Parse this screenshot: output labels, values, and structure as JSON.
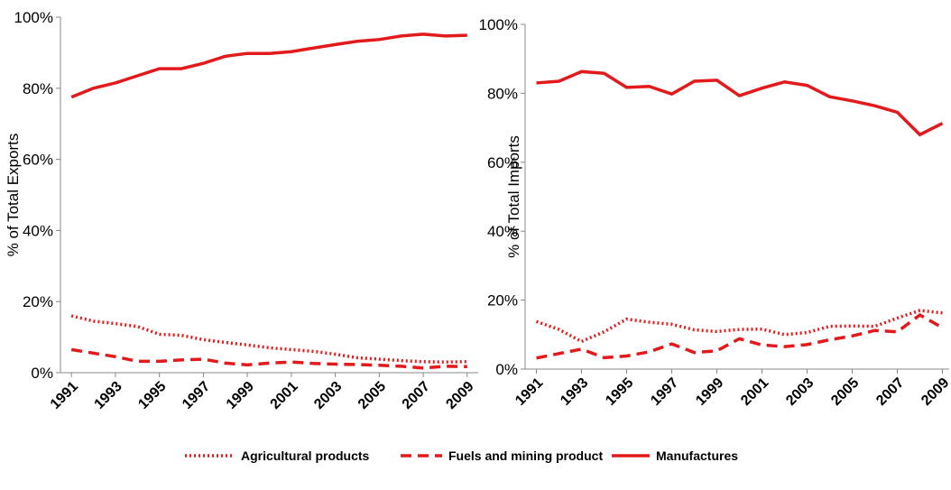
{
  "chart_data": [
    {
      "type": "line",
      "ylabel": "% of Total Exports",
      "x": [
        1991,
        1992,
        1993,
        1994,
        1995,
        1996,
        1997,
        1998,
        1999,
        2000,
        2001,
        2002,
        2003,
        2004,
        2005,
        2006,
        2007,
        2008,
        2009
      ],
      "xlim": [
        1990.5,
        2009.5
      ],
      "xticks": [
        1991,
        1993,
        1995,
        1997,
        1999,
        2001,
        2003,
        2005,
        2007,
        2009
      ],
      "ylim": [
        0,
        100
      ],
      "yticks": [
        {
          "value": 0,
          "label": "0%"
        },
        {
          "value": 20,
          "label": "20%"
        },
        {
          "value": 40,
          "label": "40%"
        },
        {
          "value": 60,
          "label": "60%"
        },
        {
          "value": 80,
          "label": "80%"
        },
        {
          "value": 100,
          "label": "100%"
        }
      ],
      "series": [
        {
          "name": "Agricultural products",
          "color": "#e31a1c",
          "dash": "dotted",
          "values": [
            16,
            14.5,
            13.8,
            13,
            10.8,
            10.5,
            9.3,
            8.5,
            7.8,
            7,
            6.5,
            6,
            5.2,
            4.2,
            3.8,
            3.4,
            3.1,
            3,
            3.1
          ]
        },
        {
          "name": "Fuels and mining product",
          "color": "#e31a1c",
          "dash": "dashed",
          "values": [
            6.5,
            5.5,
            4.5,
            3.2,
            3.2,
            3.6,
            3.8,
            2.7,
            2.2,
            2.7,
            3,
            2.6,
            2.4,
            2.3,
            2.1,
            1.8,
            1.3,
            1.8,
            1.7
          ]
        },
        {
          "name": "Manufactures",
          "color": "#e31a1c",
          "dash": "solid",
          "values": [
            77.5,
            80,
            81.5,
            83.5,
            85.5,
            85.5,
            87,
            89,
            89.8,
            89.8,
            90.3,
            91.3,
            92.3,
            93.2,
            93.7,
            94.7,
            95.2,
            94.7,
            94.9
          ]
        }
      ]
    },
    {
      "type": "line",
      "ylabel": "% of Total Imports",
      "x": [
        1991,
        1992,
        1993,
        1994,
        1995,
        1996,
        1997,
        1998,
        1999,
        2000,
        2001,
        2002,
        2003,
        2004,
        2005,
        2006,
        2007,
        2008,
        2009
      ],
      "xlim": [
        1990.5,
        2009.3
      ],
      "xticks": [
        1991,
        1993,
        1995,
        1997,
        1999,
        2001,
        2003,
        2005,
        2007,
        2009
      ],
      "ylim": [
        0,
        100
      ],
      "yticks": [
        {
          "value": 0,
          "label": "0%"
        },
        {
          "value": 20,
          "label": "20%"
        },
        {
          "value": 40,
          "label": "40%"
        },
        {
          "value": 60,
          "label": "60%"
        },
        {
          "value": 80,
          "label": "80%"
        },
        {
          "value": 100,
          "label": "100%"
        }
      ],
      "series": [
        {
          "name": "Agricultural products",
          "color": "#e31a1c",
          "dash": "dotted",
          "values": [
            13.8,
            11.5,
            8,
            10.8,
            14.5,
            13.6,
            13,
            11.4,
            10.9,
            11.5,
            11.6,
            10,
            10.6,
            12.4,
            12.5,
            12.4,
            14.8,
            17,
            16.3
          ]
        },
        {
          "name": "Fuels and mining product",
          "color": "#e31a1c",
          "dash": "dashed",
          "values": [
            3.2,
            4.5,
            5.8,
            3.3,
            3.8,
            5,
            7.3,
            4.8,
            5.3,
            8.8,
            7,
            6.5,
            7.1,
            8.5,
            9.6,
            11.2,
            10.8,
            15.7,
            12
          ]
        },
        {
          "name": "Manufactures",
          "color": "#e31a1c",
          "dash": "solid",
          "values": [
            83,
            83.5,
            86.3,
            85.8,
            81.7,
            82,
            79.8,
            83.5,
            83.8,
            79.3,
            81.5,
            83.3,
            82.3,
            79,
            77.8,
            76.4,
            74.5,
            68,
            71.3
          ]
        }
      ]
    }
  ]
}
